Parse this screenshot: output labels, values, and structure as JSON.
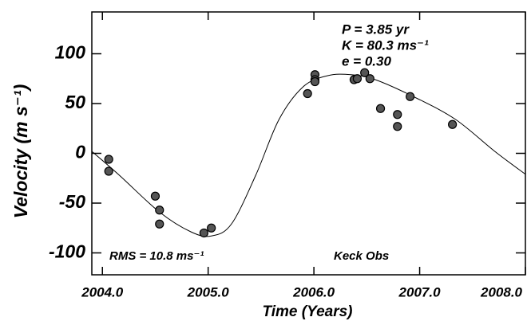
{
  "chart_data": {
    "type": "scatter",
    "x_label": "Time  (Years)",
    "y_label": "Velocity  (m s⁻¹)",
    "annotations": [
      "P = 3.85 yr",
      "K = 80.3 ms⁻¹",
      "e = 0.30",
      "RMS = 10.8 ms⁻¹",
      "Keck Obs"
    ],
    "xlim": [
      2003.9,
      2008.0
    ],
    "xticks": [
      {
        "value": 2004,
        "label": "2004.0"
      },
      {
        "value": 2005,
        "label": "2005.0"
      },
      {
        "value": 2006,
        "label": "2006.0"
      },
      {
        "value": 2007,
        "label": "2007.0"
      },
      {
        "value": 2008,
        "label": "2008.0"
      }
    ],
    "ylim": [
      -122,
      142
    ],
    "yticks": [
      -100,
      -50,
      0,
      50,
      100
    ],
    "series": [
      {
        "color": "#555555",
        "x": [
          2004.06,
          2004.06,
          2004.5,
          2004.54,
          2004.54,
          2004.96,
          2005.03,
          2005.94,
          2006.01,
          2006.01,
          2006.01,
          2006.38,
          2006.41,
          2006.48,
          2006.53,
          2006.63,
          2006.79,
          2006.79,
          2006.91,
          2007.31
        ],
        "values": [
          -6,
          -18,
          -43,
          -57,
          -71,
          -80,
          -75,
          60,
          79,
          74,
          72,
          74,
          75,
          81,
          75,
          45,
          39,
          27,
          57,
          29
        ]
      },
      {
        "color": "#000000",
        "x": [
          2003.9,
          2004.16,
          2004.54,
          2004.84,
          2005.03,
          2005.22,
          2005.45,
          2005.67,
          2005.9,
          2006.13,
          2006.35,
          2006.58,
          2006.96,
          2007.34,
          2007.71,
          2008.0
        ],
        "values": [
          2,
          -22,
          -59,
          -79,
          -83,
          -71,
          -22,
          34,
          67,
          78,
          79,
          74,
          56,
          34,
          2,
          -21
        ]
      }
    ]
  }
}
